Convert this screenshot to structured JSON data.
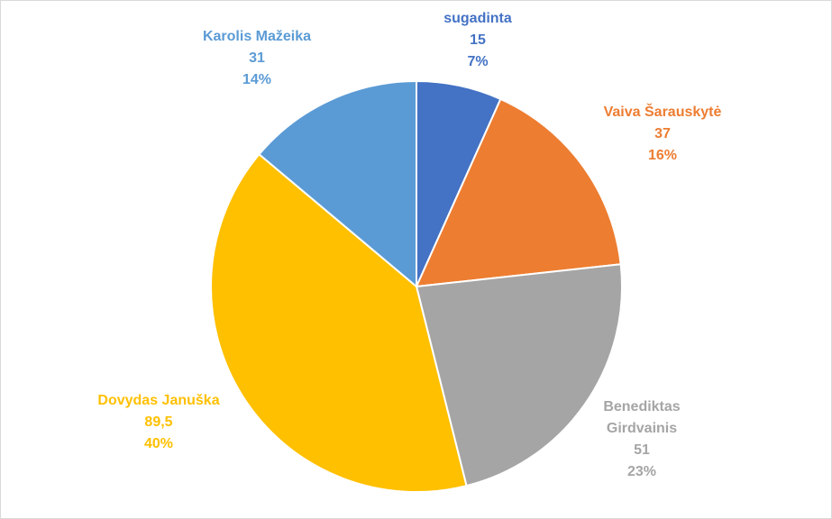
{
  "chart_data": {
    "type": "pie",
    "title": "",
    "slices": [
      {
        "label": "sugadinta",
        "value": "15",
        "percent": "7%",
        "numeric": 15,
        "color": "#4472C4"
      },
      {
        "label": "Vaiva Šarauskytė",
        "value": "37",
        "percent": "16%",
        "numeric": 37,
        "color": "#ED7D31"
      },
      {
        "label": "Benediktas Girdvainis",
        "value": "51",
        "percent": "23%",
        "numeric": 51,
        "color": "#A5A5A5"
      },
      {
        "label": "Dovydas Januška",
        "value": "89,5",
        "percent": "40%",
        "numeric": 89.5,
        "color": "#FFC000"
      },
      {
        "label": "Karolis Mažeika",
        "value": "31",
        "percent": "14%",
        "numeric": 31,
        "color": "#5B9BD5"
      }
    ],
    "start_angle_deg": 0,
    "direction": "clockwise",
    "legend": "none"
  }
}
